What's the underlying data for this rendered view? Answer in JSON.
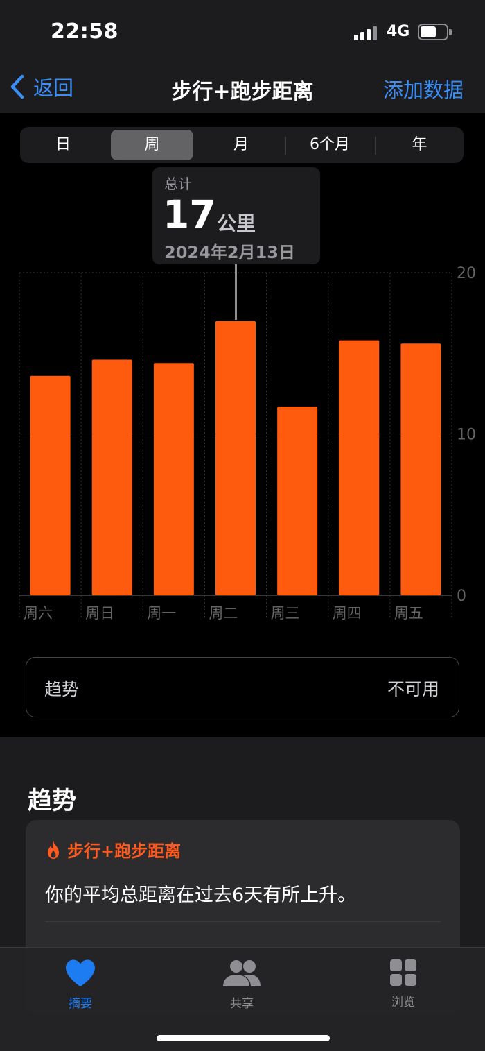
{
  "status_bar": {
    "time": "22:58",
    "network": "4G",
    "battery_level": 0.6
  },
  "nav": {
    "back_label": "返回",
    "title": "步行+跑步距离",
    "add_label": "添加数据"
  },
  "segments": {
    "items": [
      "日",
      "周",
      "月",
      "6个月",
      "年"
    ],
    "selected": "周"
  },
  "callout": {
    "label": "总计",
    "value": "17",
    "unit": "公里",
    "date": "2024年2月13日"
  },
  "chart_data": {
    "type": "bar",
    "categories": [
      "周六",
      "周日",
      "周一",
      "周二",
      "周三",
      "周四",
      "周五"
    ],
    "values": [
      13.6,
      14.6,
      14.4,
      17.0,
      11.7,
      15.8,
      15.6
    ],
    "ylim": [
      0,
      20
    ],
    "yticks": [
      "20",
      "10",
      "0"
    ],
    "highlighted_category": "周二",
    "bar_color": "#ff5b0e",
    "grid": true
  },
  "trend_row": {
    "label": "趋势",
    "value": "不可用"
  },
  "trends": {
    "heading": "趋势",
    "card_title": "步行+跑步距离",
    "card_text": "你的平均总距离在过去6天有所上升。"
  },
  "tabs": [
    {
      "label": "摘要",
      "icon": "heart-icon",
      "active": true
    },
    {
      "label": "共享",
      "icon": "people-icon",
      "active": false
    },
    {
      "label": "浏览",
      "icon": "grid-icon",
      "active": false
    }
  ],
  "colors": {
    "accent": "#3a8ef6",
    "bar": "#ff5b0e",
    "tab_active": "#1e7cf2"
  }
}
